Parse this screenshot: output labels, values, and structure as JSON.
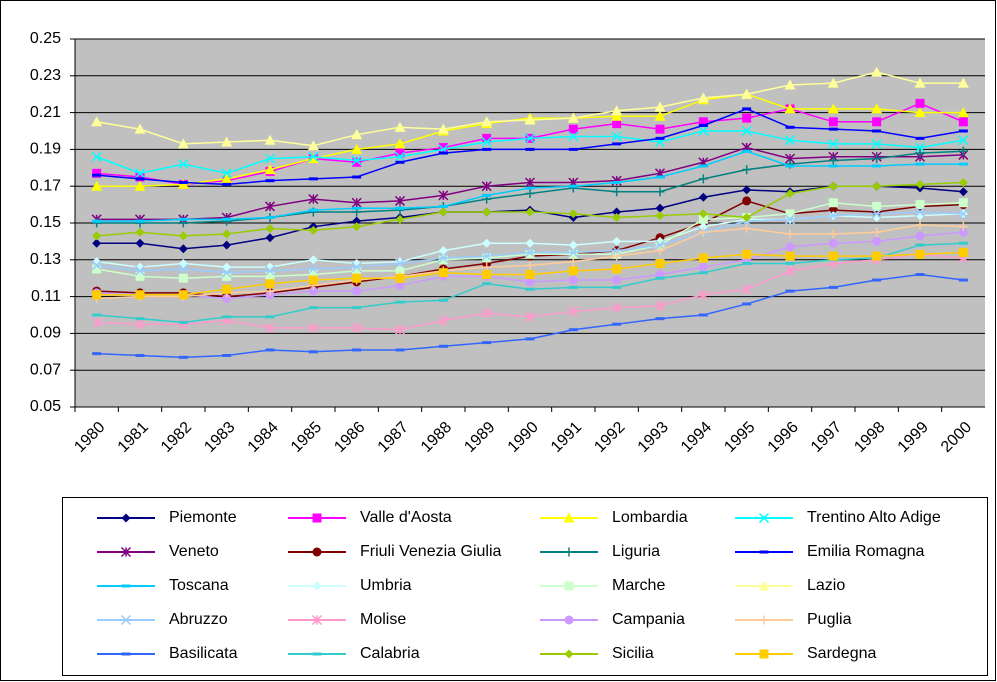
{
  "chart_data": {
    "type": "line",
    "categories": [
      "1980",
      "1981",
      "1982",
      "1983",
      "1984",
      "1985",
      "1986",
      "1987",
      "1988",
      "1989",
      "1990",
      "1991",
      "1992",
      "1993",
      "1994",
      "1995",
      "1996",
      "1997",
      "1998",
      "1999",
      "2000"
    ],
    "ylim": [
      0.05,
      0.25
    ],
    "yticks": [
      {
        "value": 0.05,
        "label": "0.05"
      },
      {
        "value": 0.07,
        "label": "0.07"
      },
      {
        "value": 0.09,
        "label": "0.09"
      },
      {
        "value": 0.11,
        "label": "0.11"
      },
      {
        "value": 0.13,
        "label": "0.13"
      },
      {
        "value": 0.15,
        "label": "0.15"
      },
      {
        "value": 0.17,
        "label": "0.17"
      },
      {
        "value": 0.19,
        "label": "0.19"
      },
      {
        "value": 0.21,
        "label": "0.21"
      },
      {
        "value": 0.23,
        "label": "0.23"
      },
      {
        "value": 0.25,
        "label": "0.25"
      }
    ],
    "grid": true,
    "legend": "bottom",
    "series": [
      {
        "name": "Piemonte",
        "color": "#000080",
        "marker": "diamond",
        "values": [
          0.139,
          0.139,
          0.136,
          0.138,
          0.142,
          0.148,
          0.151,
          0.153,
          0.156,
          0.156,
          0.157,
          0.153,
          0.156,
          0.158,
          0.164,
          0.168,
          0.167,
          0.17,
          0.17,
          0.169,
          0.167
        ]
      },
      {
        "name": "Valle d'Aosta",
        "color": "#FF00FF",
        "marker": "square",
        "values": [
          0.177,
          0.175,
          0.171,
          0.173,
          0.178,
          0.185,
          0.183,
          0.188,
          0.191,
          0.196,
          0.196,
          0.201,
          0.204,
          0.201,
          0.205,
          0.207,
          0.212,
          0.205,
          0.205,
          0.215,
          0.205
        ]
      },
      {
        "name": "Lombardia",
        "color": "#FFFF00",
        "marker": "triangle",
        "values": [
          0.17,
          0.17,
          0.171,
          0.174,
          0.179,
          0.185,
          0.19,
          0.193,
          0.2,
          0.204,
          0.207,
          0.207,
          0.208,
          0.208,
          0.217,
          0.22,
          0.212,
          0.212,
          0.212,
          0.21,
          0.21
        ]
      },
      {
        "name": "Trentino Alto Adige",
        "color": "#00FFFF",
        "marker": "x",
        "values": [
          0.186,
          0.177,
          0.182,
          0.177,
          0.185,
          0.186,
          0.184,
          0.186,
          0.19,
          0.194,
          0.196,
          0.197,
          0.197,
          0.194,
          0.2,
          0.2,
          0.195,
          0.193,
          0.193,
          0.191,
          0.195
        ]
      },
      {
        "name": "Veneto",
        "color": "#800080",
        "marker": "star",
        "values": [
          0.152,
          0.152,
          0.152,
          0.153,
          0.159,
          0.163,
          0.161,
          0.162,
          0.165,
          0.17,
          0.172,
          0.172,
          0.173,
          0.177,
          0.183,
          0.191,
          0.185,
          0.186,
          0.186,
          0.186,
          0.187
        ]
      },
      {
        "name": "Friuli Venezia Giulia",
        "color": "#800000",
        "marker": "circle",
        "values": [
          0.113,
          0.112,
          0.112,
          0.11,
          0.112,
          0.115,
          0.118,
          0.121,
          0.125,
          0.128,
          0.132,
          0.133,
          0.135,
          0.142,
          0.15,
          0.162,
          0.155,
          0.157,
          0.156,
          0.159,
          0.16
        ]
      },
      {
        "name": "Liguria",
        "color": "#008080",
        "marker": "plus",
        "values": [
          0.15,
          0.15,
          0.15,
          0.151,
          0.153,
          0.156,
          0.156,
          0.157,
          0.159,
          0.163,
          0.166,
          0.169,
          0.167,
          0.167,
          0.174,
          0.179,
          0.182,
          0.184,
          0.185,
          0.188,
          0.189
        ]
      },
      {
        "name": "Emilia Romagna",
        "color": "#0000FF",
        "marker": "dash",
        "values": [
          0.176,
          0.174,
          0.172,
          0.171,
          0.173,
          0.174,
          0.175,
          0.183,
          0.188,
          0.19,
          0.19,
          0.19,
          0.193,
          0.196,
          0.203,
          0.212,
          0.202,
          0.201,
          0.2,
          0.196,
          0.2
        ]
      },
      {
        "name": "Toscana",
        "color": "#00CCFF",
        "marker": "dash",
        "values": [
          0.151,
          0.151,
          0.152,
          0.152,
          0.153,
          0.157,
          0.158,
          0.158,
          0.159,
          0.165,
          0.169,
          0.17,
          0.172,
          0.175,
          0.181,
          0.189,
          0.181,
          0.181,
          0.181,
          0.182,
          0.182
        ]
      },
      {
        "name": "Umbria",
        "color": "#CCFFFF",
        "marker": "diamond",
        "values": [
          0.129,
          0.126,
          0.128,
          0.126,
          0.126,
          0.13,
          0.128,
          0.129,
          0.135,
          0.139,
          0.139,
          0.138,
          0.14,
          0.14,
          0.148,
          0.152,
          0.152,
          0.154,
          0.153,
          0.154,
          0.155
        ]
      },
      {
        "name": "Marche",
        "color": "#CCFFCC",
        "marker": "square",
        "values": [
          0.125,
          0.121,
          0.12,
          0.121,
          0.121,
          0.122,
          0.124,
          0.124,
          0.13,
          0.131,
          0.133,
          0.133,
          0.133,
          0.138,
          0.152,
          0.153,
          0.155,
          0.161,
          0.159,
          0.16,
          0.161
        ]
      },
      {
        "name": "Lazio",
        "color": "#FFFF99",
        "marker": "triangle",
        "values": [
          0.205,
          0.201,
          0.193,
          0.194,
          0.195,
          0.192,
          0.198,
          0.202,
          0.201,
          0.205,
          0.206,
          0.207,
          0.211,
          0.213,
          0.218,
          0.22,
          0.225,
          0.226,
          0.232,
          0.226,
          0.226
        ]
      },
      {
        "name": "Abruzzo",
        "color": "#99CCFF",
        "marker": "x",
        "values": [
          0.127,
          0.124,
          0.125,
          0.123,
          0.124,
          0.125,
          0.126,
          0.128,
          0.131,
          0.132,
          0.134,
          0.134,
          0.135,
          0.138,
          0.145,
          0.151,
          0.152,
          0.154,
          0.155,
          0.156,
          0.155
        ]
      },
      {
        "name": "Molise",
        "color": "#FF99CC",
        "marker": "star",
        "values": [
          0.096,
          0.095,
          0.095,
          0.097,
          0.093,
          0.093,
          0.093,
          0.092,
          0.097,
          0.101,
          0.099,
          0.102,
          0.104,
          0.105,
          0.111,
          0.114,
          0.124,
          0.128,
          0.13,
          0.133,
          0.131
        ]
      },
      {
        "name": "Campania",
        "color": "#CC99FF",
        "marker": "circle",
        "values": [
          0.112,
          0.111,
          0.111,
          0.109,
          0.111,
          0.113,
          0.113,
          0.116,
          0.121,
          0.121,
          0.118,
          0.119,
          0.119,
          0.122,
          0.126,
          0.13,
          0.137,
          0.139,
          0.14,
          0.143,
          0.145
        ]
      },
      {
        "name": "Puglia",
        "color": "#FFCC99",
        "marker": "plus",
        "values": [
          0.109,
          0.11,
          0.11,
          0.112,
          0.113,
          0.116,
          0.119,
          0.121,
          0.124,
          0.126,
          0.127,
          0.129,
          0.132,
          0.135,
          0.145,
          0.147,
          0.144,
          0.144,
          0.145,
          0.149,
          0.148
        ]
      },
      {
        "name": "Basilicata",
        "color": "#3366FF",
        "marker": "dash",
        "values": [
          0.079,
          0.078,
          0.077,
          0.078,
          0.081,
          0.08,
          0.081,
          0.081,
          0.083,
          0.085,
          0.087,
          0.092,
          0.095,
          0.098,
          0.1,
          0.106,
          0.113,
          0.115,
          0.119,
          0.122,
          0.119
        ]
      },
      {
        "name": "Calabria",
        "color": "#33CCCC",
        "marker": "dash",
        "values": [
          0.1,
          0.098,
          0.096,
          0.099,
          0.099,
          0.104,
          0.104,
          0.107,
          0.108,
          0.117,
          0.114,
          0.115,
          0.115,
          0.12,
          0.123,
          0.128,
          0.128,
          0.13,
          0.131,
          0.138,
          0.139
        ]
      },
      {
        "name": "Sicilia",
        "color": "#99CC00",
        "marker": "diamond",
        "values": [
          0.143,
          0.145,
          0.143,
          0.144,
          0.147,
          0.146,
          0.148,
          0.152,
          0.156,
          0.156,
          0.156,
          0.155,
          0.153,
          0.154,
          0.155,
          0.153,
          0.166,
          0.17,
          0.17,
          0.171,
          0.172
        ]
      },
      {
        "name": "Sardegna",
        "color": "#FFCC00",
        "marker": "square",
        "values": [
          0.111,
          0.111,
          0.111,
          0.114,
          0.117,
          0.119,
          0.12,
          0.12,
          0.123,
          0.122,
          0.122,
          0.124,
          0.125,
          0.128,
          0.131,
          0.133,
          0.132,
          0.132,
          0.132,
          0.133,
          0.134
        ]
      }
    ]
  }
}
